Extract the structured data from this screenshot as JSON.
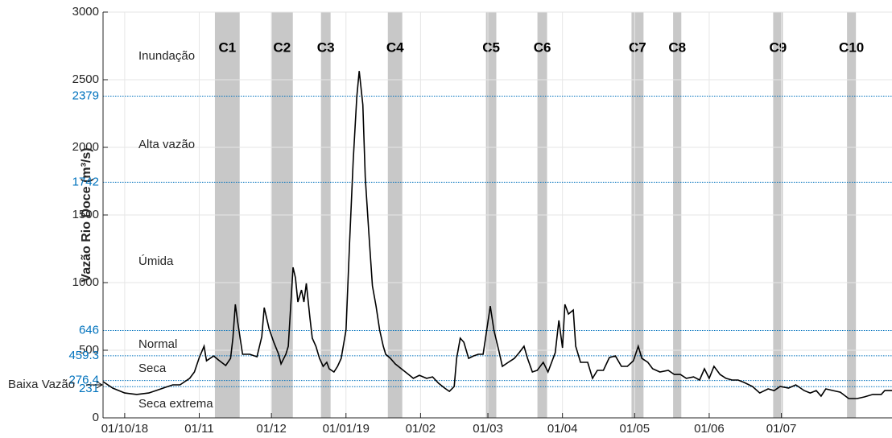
{
  "chart_data": {
    "type": "line",
    "ylabel": "Vazão Rio Doce (m³/s)",
    "xlim": [
      -9,
      319
    ],
    "ylim": [
      0,
      3000
    ],
    "xticks": [
      {
        "value": 0,
        "label": "01/10/18"
      },
      {
        "value": 31,
        "label": "01/11"
      },
      {
        "value": 61,
        "label": "01/12"
      },
      {
        "value": 92,
        "label": "01/01/19"
      },
      {
        "value": 123,
        "label": "01/02"
      },
      {
        "value": 151,
        "label": "01/03"
      },
      {
        "value": 182,
        "label": "01/04"
      },
      {
        "value": 212,
        "label": "01/05"
      },
      {
        "value": 243,
        "label": "01/06"
      },
      {
        "value": 273,
        "label": "01/07"
      }
    ],
    "yticks": [
      0,
      500,
      1000,
      1500,
      2000,
      2500,
      3000
    ],
    "grid": true,
    "color": "#000000",
    "thresholds": [
      231,
      276.4,
      459.3,
      646,
      1742,
      2379
    ],
    "threshold_color": "#0072bd",
    "regimes": [
      "Seca extrema",
      "Baixa Vazão",
      "Seca",
      "Normal",
      "Úmida",
      "Alta vazão",
      "Inundação"
    ],
    "campaigns": [
      {
        "label": "C1",
        "start": 37.5,
        "end": 47.8
      },
      {
        "label": "C2",
        "start": 60.9,
        "end": 69.9
      },
      {
        "label": "C3",
        "start": 81.6,
        "end": 85.6
      },
      {
        "label": "C4",
        "start": 109.4,
        "end": 115.4
      },
      {
        "label": "C5",
        "start": 150.2,
        "end": 154.5
      },
      {
        "label": "C6",
        "start": 171.6,
        "end": 175.6
      },
      {
        "label": "C7",
        "start": 210.7,
        "end": 215.7
      },
      {
        "label": "C8",
        "start": 228,
        "end": 231.4
      },
      {
        "label": "C9",
        "start": 269.6,
        "end": 273.6
      },
      {
        "label": "C10",
        "start": 300.3,
        "end": 304
      }
    ],
    "campaign_color": "#c8c8c8",
    "x": [
      -9,
      -5,
      0,
      5,
      10,
      13,
      17,
      20,
      23,
      27,
      29,
      31,
      33,
      34,
      37,
      39,
      42,
      44,
      45,
      46,
      47,
      49,
      52,
      55,
      57,
      58,
      60,
      62,
      64,
      65,
      67,
      68,
      70,
      71,
      72,
      73.5,
      74.5,
      75.5,
      77,
      78,
      79.5,
      81,
      82.5,
      84,
      85,
      87,
      88.5,
      90,
      92,
      93.5,
      95,
      96.5,
      97.5,
      99,
      100,
      101.5,
      103,
      104.5,
      106,
      107.5,
      108.5,
      110.5,
      112.5,
      115,
      118,
      120,
      122.5,
      125.5,
      128,
      130.5,
      133,
      135,
      137,
      138,
      139.5,
      141,
      143,
      145,
      147,
      149,
      150,
      152,
      153.5,
      155.5,
      157,
      159.5,
      162,
      164,
      166,
      167.5,
      169.5,
      171.5,
      174,
      176,
      179,
      180.5,
      182,
      183,
      184.5,
      186.5,
      187.5,
      189.5,
      192.5,
      194.5,
      196.5,
      199,
      201.5,
      204,
      206.5,
      209,
      211.5,
      213.5,
      215,
      217.5,
      219.5,
      222.5,
      226,
      228.5,
      231,
      233.5,
      236.5,
      239,
      241,
      243,
      245,
      247.5,
      250,
      252.5,
      255,
      257.5,
      261,
      264,
      267.5,
      270,
      272.5,
      276,
      279,
      282.5,
      285,
      287.5,
      289.5,
      291.5,
      294.5,
      297.5,
      301,
      304.5,
      307.5,
      311,
      314.5,
      316,
      319
    ],
    "values": [
      268,
      220,
      184,
      173,
      184,
      202,
      226,
      244,
      244,
      292,
      339,
      446,
      530,
      422,
      458,
      428,
      387,
      440,
      589,
      839,
      708,
      470,
      470,
      452,
      601,
      815,
      660,
      559,
      470,
      399,
      470,
      530,
      1113,
      1035,
      857,
      946,
      857,
      994,
      738,
      589,
      530,
      440,
      381,
      411,
      363,
      339,
      381,
      440,
      649,
      1303,
      1898,
      2374,
      2564,
      2315,
      1779,
      1363,
      976,
      827,
      649,
      530,
      470,
      440,
      399,
      363,
      321,
      292,
      315,
      292,
      303,
      256,
      220,
      196,
      232,
      440,
      589,
      559,
      440,
      458,
      470,
      470,
      589,
      827,
      649,
      500,
      381,
      411,
      440,
      482,
      530,
      440,
      339,
      351,
      411,
      339,
      482,
      720,
      518,
      839,
      768,
      797,
      530,
      411,
      411,
      292,
      351,
      351,
      446,
      458,
      381,
      381,
      422,
      530,
      440,
      411,
      363,
      339,
      351,
      321,
      321,
      292,
      303,
      280,
      363,
      292,
      381,
      321,
      292,
      280,
      280,
      262,
      232,
      184,
      214,
      202,
      232,
      220,
      244,
      202,
      184,
      202,
      161,
      214,
      202,
      190,
      143,
      143,
      155,
      173,
      173,
      202,
      202
    ]
  }
}
